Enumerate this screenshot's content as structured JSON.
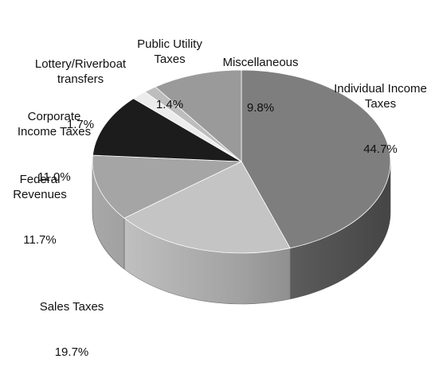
{
  "chart_data": {
    "type": "pie",
    "style": "3d",
    "slices": [
      {
        "label": "Individual Income\nTaxes",
        "value": 44.7,
        "display": "44.7%",
        "color": "#7e7e7e"
      },
      {
        "label": "Sales Taxes",
        "value": 19.7,
        "display": "19.7%",
        "color": "#c4c4c4"
      },
      {
        "label": "Federal\nRevenues",
        "value": 11.7,
        "display": "11.7%",
        "color": "#a5a5a5"
      },
      {
        "label": "Corporate\nIncome Taxes",
        "value": 11.0,
        "display": "11.0%",
        "color": "#1c1c1c"
      },
      {
        "label": "Lottery/Riverboat\ntransfers",
        "value": 1.7,
        "display": "1.7%",
        "color": "#ececec"
      },
      {
        "label": "Public Utility\nTaxes",
        "value": 1.4,
        "display": "1.4%",
        "color": "#bdbdbd"
      },
      {
        "label": "Miscellaneous",
        "value": 9.8,
        "display": "9.8%",
        "color": "#9a9a9a"
      }
    ]
  }
}
